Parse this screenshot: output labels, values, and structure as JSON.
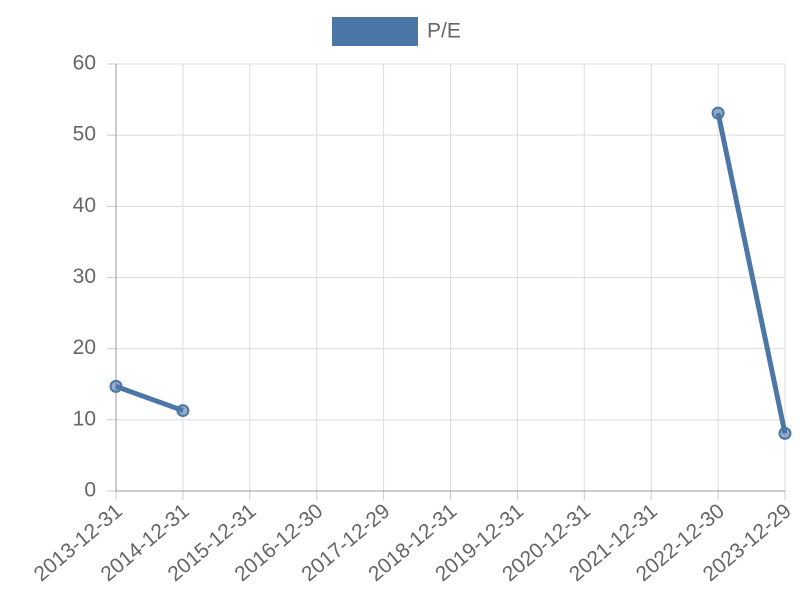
{
  "chart_data": {
    "type": "line",
    "categories": [
      "2013-12-31",
      "2014-12-31",
      "2015-12-31",
      "2016-12-30",
      "2017-12-29",
      "2018-12-31",
      "2019-12-31",
      "2020-12-31",
      "2021-12-31",
      "2022-12-30",
      "2023-12-29"
    ],
    "series": [
      {
        "name": "P/E",
        "color": "#4b76a6",
        "values": [
          14.7,
          11.3,
          null,
          null,
          null,
          null,
          null,
          null,
          null,
          53.1,
          8.1
        ]
      }
    ],
    "ylim": [
      0,
      60
    ],
    "yticks": [
      0,
      10,
      20,
      30,
      40,
      50,
      60
    ],
    "grid": true,
    "legend": "top"
  }
}
